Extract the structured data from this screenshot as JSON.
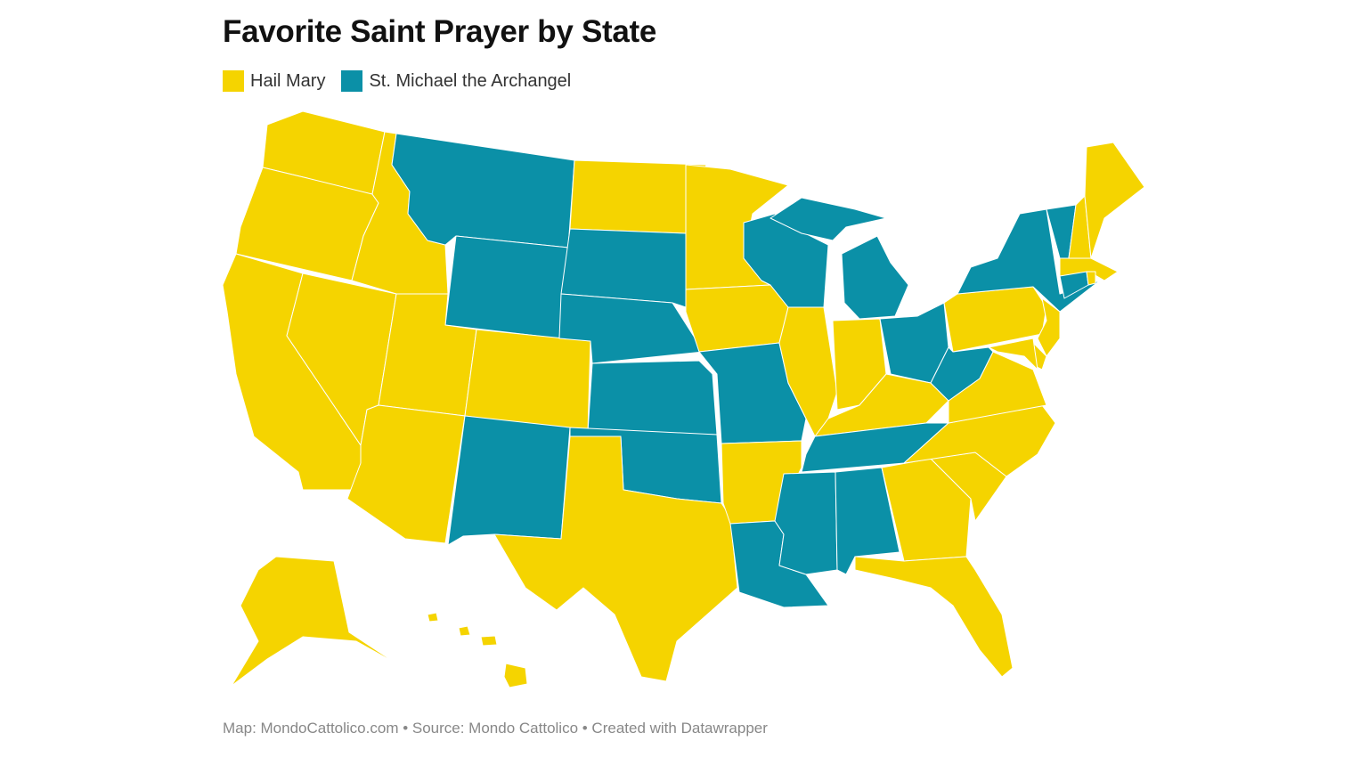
{
  "title": "Favorite Saint Prayer by State",
  "legend": [
    {
      "label": "Hail Mary",
      "color": "#f5d400"
    },
    {
      "label": "St. Michael the Archangel",
      "color": "#0b90a7"
    }
  ],
  "footer": "Map: MondoCattolico.com • Source: Mondo Cattolico • Created with Datawrapper",
  "states": {
    "WA": "Hail Mary",
    "OR": "Hail Mary",
    "CA": "Hail Mary",
    "ID": "Hail Mary",
    "NV": "Hail Mary",
    "MT": "St. Michael the Archangel",
    "WY": "St. Michael the Archangel",
    "UT": "Hail Mary",
    "AZ": "Hail Mary",
    "CO": "Hail Mary",
    "NM": "St. Michael the Archangel",
    "ND": "Hail Mary",
    "SD": "St. Michael the Archangel",
    "NE": "St. Michael the Archangel",
    "KS": "St. Michael the Archangel",
    "OK": "St. Michael the Archangel",
    "TX": "Hail Mary",
    "MN": "Hail Mary",
    "IA": "Hail Mary",
    "MO": "St. Michael the Archangel",
    "AR": "Hail Mary",
    "LA": "St. Michael the Archangel",
    "WI": "St. Michael the Archangel",
    "IL": "Hail Mary",
    "MI": "St. Michael the Archangel",
    "IN": "Hail Mary",
    "OH": "St. Michael the Archangel",
    "KY": "Hail Mary",
    "TN": "St. Michael the Archangel",
    "MS": "St. Michael the Archangel",
    "AL": "St. Michael the Archangel",
    "GA": "Hail Mary",
    "FL": "Hail Mary",
    "SC": "Hail Mary",
    "NC": "Hail Mary",
    "VA": "Hail Mary",
    "WV": "St. Michael the Archangel",
    "PA": "Hail Mary",
    "NY": "St. Michael the Archangel",
    "VT": "St. Michael the Archangel",
    "NH": "Hail Mary",
    "ME": "Hail Mary",
    "MA": "Hail Mary",
    "CT": "St. Michael the Archangel",
    "RI": "Hail Mary",
    "NJ": "Hail Mary",
    "DE": "Hail Mary",
    "MD": "Hail Mary",
    "AK": "Hail Mary",
    "HI": "Hail Mary"
  }
}
